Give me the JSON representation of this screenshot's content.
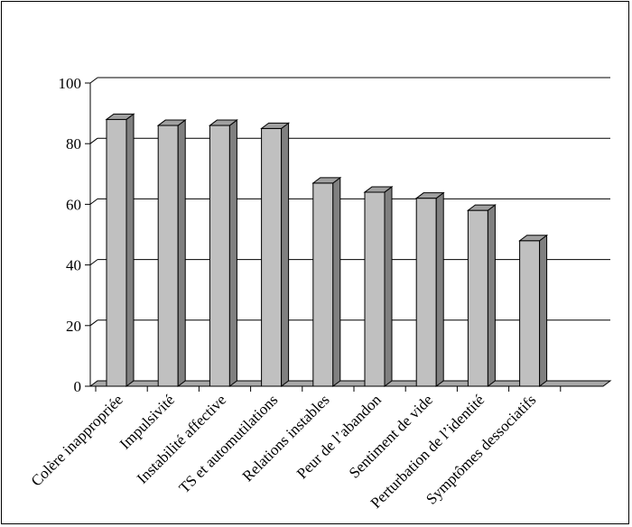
{
  "chart_data": {
    "type": "bar",
    "title": "",
    "xlabel": "",
    "ylabel": "",
    "ylim": [
      0,
      100
    ],
    "yticks": [
      0,
      20,
      40,
      60,
      80,
      100
    ],
    "grid": true,
    "three_d": true,
    "categories": [
      "Colère inappropriée",
      "Impulsivité",
      "Instabilité affective",
      "TS et automutilations",
      "Relations instables",
      "Peur de l’abandon",
      "Sentiment de vide",
      "Perturbation de l’identité",
      "Symptômes dessociatifs"
    ],
    "values": [
      88,
      86,
      86,
      85,
      67,
      64,
      62,
      58,
      48
    ],
    "colors": {
      "bar_front": "#c0c0c0",
      "bar_side": "#808080",
      "bar_top": "#a0a0a0",
      "floor": "#a8a8a8",
      "grid": "#000000"
    }
  }
}
